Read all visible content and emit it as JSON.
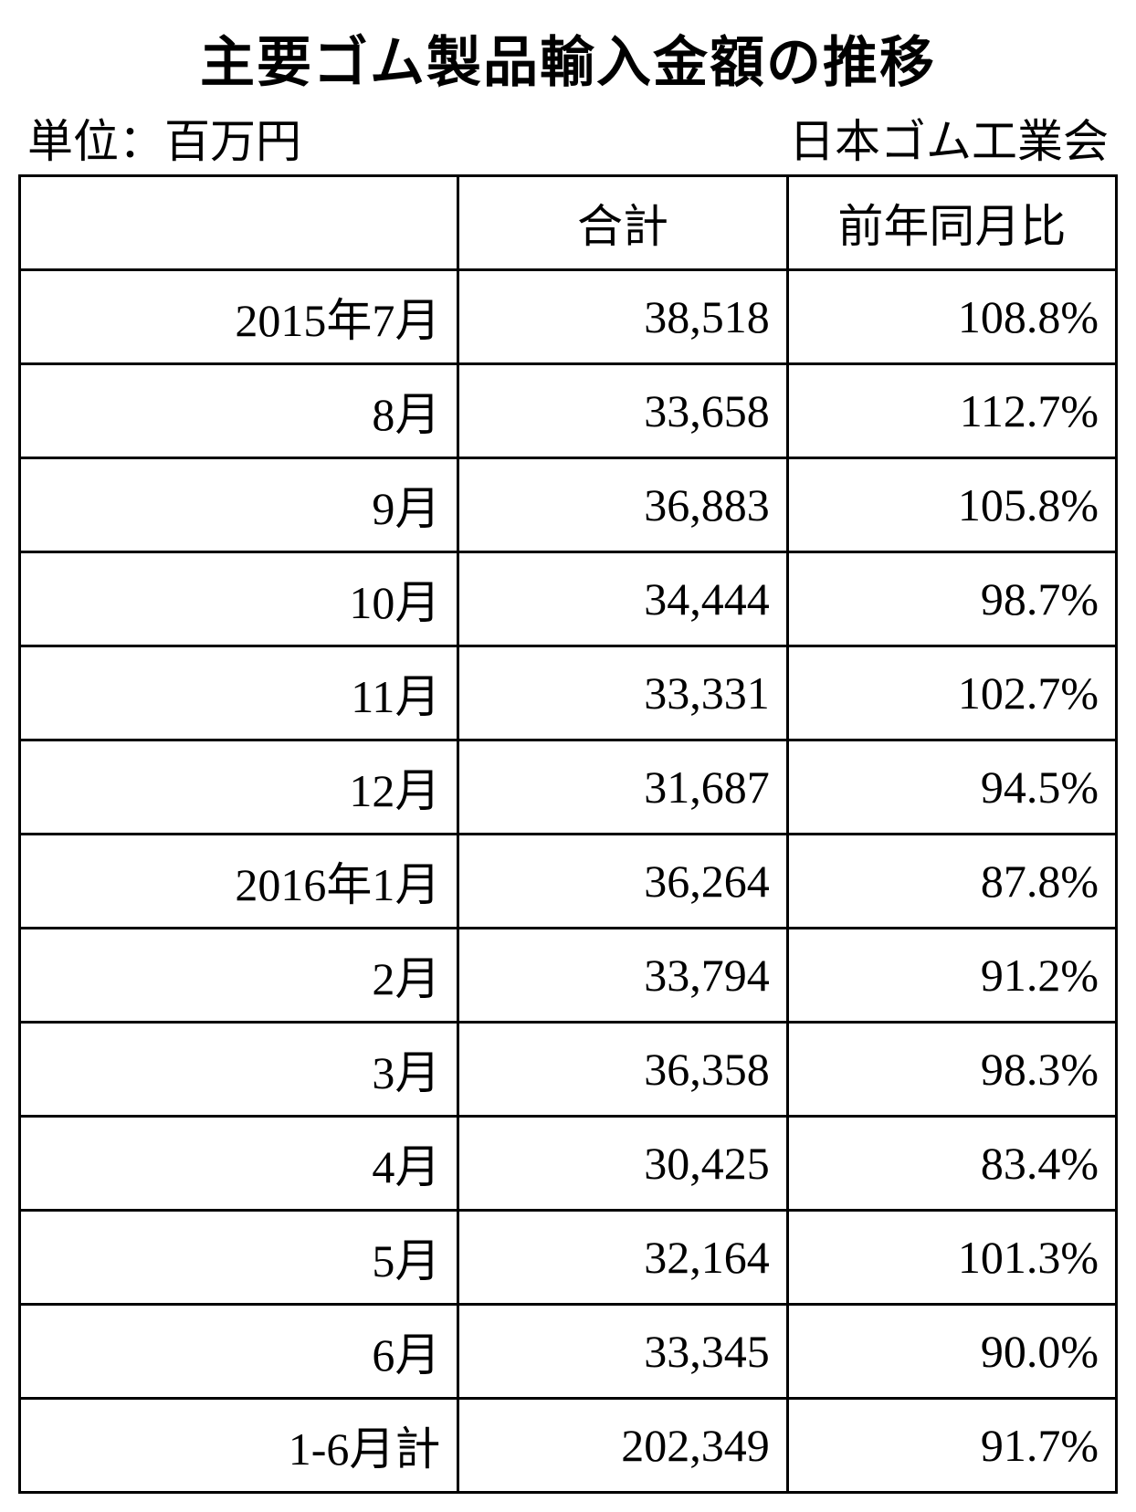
{
  "title": "主要ゴム製品輸入金額の推移",
  "unit_label": "単位：百万円",
  "source_label": "日本ゴム工業会",
  "table": {
    "columns": [
      "",
      "合計",
      "前年同月比"
    ],
    "rows": [
      {
        "period": "2015年7月",
        "total": "38,518",
        "yoy": "108.8%"
      },
      {
        "period": "8月",
        "total": "33,658",
        "yoy": "112.7%"
      },
      {
        "period": "9月",
        "total": "36,883",
        "yoy": "105.8%"
      },
      {
        "period": "10月",
        "total": "34,444",
        "yoy": "98.7%"
      },
      {
        "period": "11月",
        "total": "33,331",
        "yoy": "102.7%"
      },
      {
        "period": "12月",
        "total": "31,687",
        "yoy": "94.5%"
      },
      {
        "period": "2016年1月",
        "total": "36,264",
        "yoy": "87.8%"
      },
      {
        "period": "2月",
        "total": "33,794",
        "yoy": "91.2%"
      },
      {
        "period": "3月",
        "total": "36,358",
        "yoy": "98.3%"
      },
      {
        "period": "4月",
        "total": "30,425",
        "yoy": "83.4%"
      },
      {
        "period": "5月",
        "total": "32,164",
        "yoy": "101.3%"
      },
      {
        "period": "6月",
        "total": "33,345",
        "yoy": "90.0%"
      },
      {
        "period": "1-6月計",
        "total": "202,349",
        "yoy": "91.7%"
      }
    ],
    "border_color": "#000000",
    "background_color": "#ffffff",
    "font_size_pt": 38
  }
}
